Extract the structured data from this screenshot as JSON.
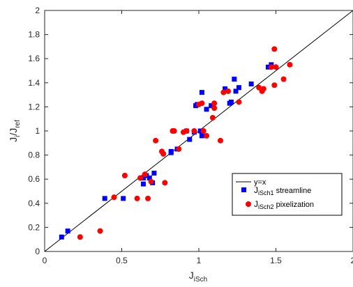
{
  "chart_data": {
    "type": "scatter",
    "xlim": [
      0,
      2
    ],
    "ylim": [
      0,
      2
    ],
    "xticks": [
      0,
      0.5,
      1,
      1.5,
      2
    ],
    "yticks": [
      0,
      0.2,
      0.4,
      0.6,
      0.8,
      1,
      1.2,
      1.4,
      1.6,
      1.8,
      2
    ],
    "xtick_labels": [
      "0",
      "0.5",
      "1",
      "1.5",
      "2"
    ],
    "ytick_labels": [
      "0",
      "0.2",
      "0.4",
      "0.6",
      "0.8",
      "1",
      "1.2",
      "1.4",
      "1.6",
      "1.8",
      "2"
    ],
    "xlabel": {
      "main": "J",
      "sub": "iSch"
    },
    "ylabel": {
      "main": "J",
      "sub1": "i",
      "mid": "/J",
      "sub2": "ref"
    },
    "grid": false,
    "legend_position": "lower-right",
    "reference_line": {
      "name": "y=x",
      "slope": 1,
      "intercept": 0,
      "color": "#000000"
    },
    "series": [
      {
        "name": "streamline",
        "legend_main": "J",
        "legend_sub": "iSch1",
        "legend_suffix": " streamline",
        "marker": "square",
        "color": "#0000ff",
        "points": [
          [
            0.11,
            0.12
          ],
          [
            0.15,
            0.17
          ],
          [
            0.39,
            0.44
          ],
          [
            0.51,
            0.44
          ],
          [
            0.64,
            0.56
          ],
          [
            0.64,
            0.61
          ],
          [
            0.66,
            0.63
          ],
          [
            0.68,
            0.61
          ],
          [
            0.7,
            0.57
          ],
          [
            0.71,
            0.65
          ],
          [
            0.82,
            0.82
          ],
          [
            0.82,
            0.83
          ],
          [
            0.86,
            0.85
          ],
          [
            0.92,
            1.0
          ],
          [
            0.94,
            0.93
          ],
          [
            0.97,
            0.99
          ],
          [
            0.98,
            1.21
          ],
          [
            0.99,
            1.22
          ],
          [
            1.01,
            1.0
          ],
          [
            1.02,
            1.32
          ],
          [
            1.02,
            0.96
          ],
          [
            1.05,
            1.18
          ],
          [
            1.08,
            1.21
          ],
          [
            1.17,
            1.35
          ],
          [
            1.2,
            1.23
          ],
          [
            1.21,
            1.24
          ],
          [
            1.23,
            1.43
          ],
          [
            1.24,
            1.33
          ],
          [
            1.26,
            1.36
          ],
          [
            1.34,
            1.39
          ],
          [
            1.45,
            1.53
          ],
          [
            1.47,
            1.55
          ]
        ]
      },
      {
        "name": "pixelization",
        "legend_main": "J",
        "legend_sub": "iSch2",
        "legend_suffix": " pixelization",
        "marker": "circle",
        "color": "#ff0000",
        "points": [
          [
            0.23,
            0.12
          ],
          [
            0.36,
            0.17
          ],
          [
            0.45,
            0.45
          ],
          [
            0.52,
            0.63
          ],
          [
            0.6,
            0.44
          ],
          [
            0.62,
            0.61
          ],
          [
            0.65,
            0.64
          ],
          [
            0.67,
            0.44
          ],
          [
            0.69,
            0.58
          ],
          [
            0.72,
            0.92
          ],
          [
            0.76,
            0.83
          ],
          [
            0.77,
            0.81
          ],
          [
            0.78,
            0.57
          ],
          [
            0.83,
            1.0
          ],
          [
            0.84,
            1.0
          ],
          [
            0.87,
            0.85
          ],
          [
            0.9,
            0.99
          ],
          [
            0.92,
            1.0
          ],
          [
            0.97,
            1.0
          ],
          [
            1.0,
            1.22
          ],
          [
            1.02,
            1.23
          ],
          [
            1.03,
            1.0
          ],
          [
            1.05,
            0.96
          ],
          [
            1.09,
            1.11
          ],
          [
            1.1,
            1.19
          ],
          [
            1.1,
            1.23
          ],
          [
            1.14,
            0.92
          ],
          [
            1.16,
            1.32
          ],
          [
            1.19,
            1.33
          ],
          [
            1.26,
            1.24
          ],
          [
            1.39,
            1.36
          ],
          [
            1.41,
            1.33
          ],
          [
            1.42,
            1.35
          ],
          [
            1.47,
            1.53
          ],
          [
            1.49,
            1.38
          ],
          [
            1.49,
            1.68
          ],
          [
            1.5,
            1.53
          ],
          [
            1.55,
            1.43
          ],
          [
            1.59,
            1.55
          ]
        ]
      }
    ]
  }
}
